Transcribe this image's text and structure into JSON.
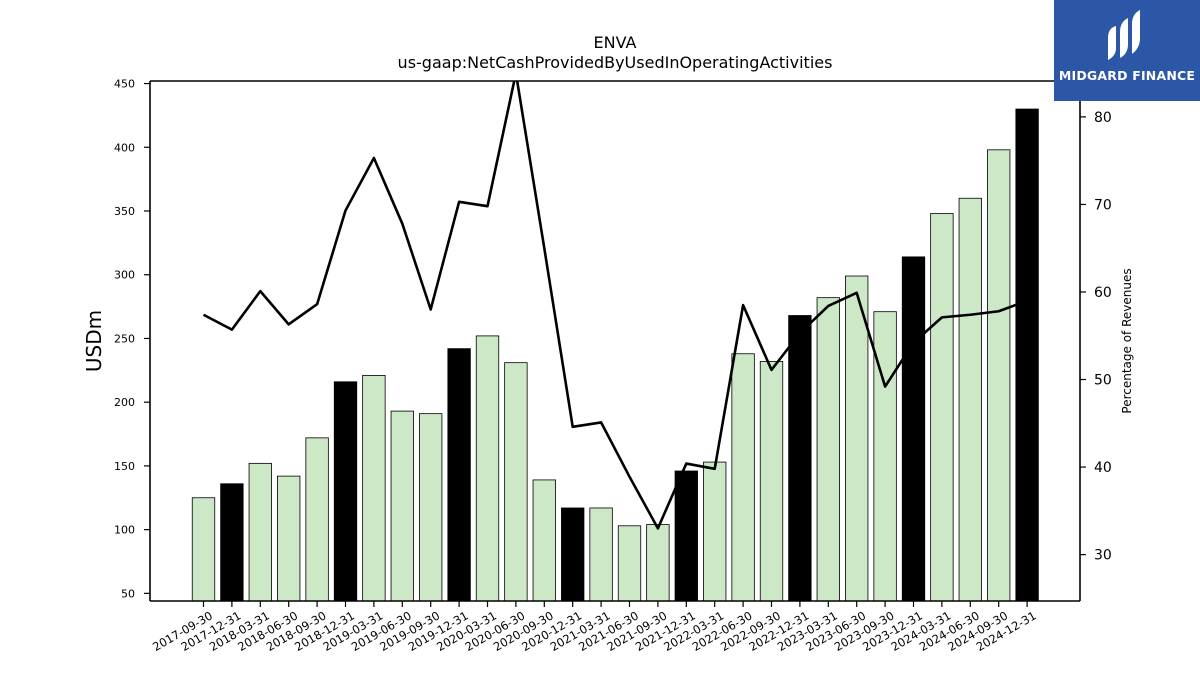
{
  "chart_data": {
    "type": "bar",
    "title": "ENVA",
    "subtitle": "us-gaap:NetCashProvidedByUsedInOperatingActivities",
    "ylabel": "USDm",
    "ylabel_right": "Percentage of Revenues",
    "ylim": [
      44,
      452
    ],
    "ylim_right": [
      24.7,
      84.1
    ],
    "y_ticks": [
      50,
      100,
      150,
      200,
      250,
      300,
      350,
      400,
      450
    ],
    "y_ticks_right": [
      30,
      40,
      50,
      60,
      70,
      80
    ],
    "categories": [
      "2017-09-30",
      "2017-12-31",
      "2018-03-31",
      "2018-06-30",
      "2018-09-30",
      "2018-12-31",
      "2019-03-31",
      "2019-06-30",
      "2019-09-30",
      "2019-12-31",
      "2020-03-31",
      "2020-06-30",
      "2020-09-30",
      "2020-12-31",
      "2021-03-31",
      "2021-06-30",
      "2021-09-30",
      "2021-12-31",
      "2022-03-31",
      "2022-06-30",
      "2022-09-30",
      "2022-12-31",
      "2023-03-31",
      "2023-06-30",
      "2023-09-30",
      "2023-12-31",
      "2024-03-31",
      "2024-06-30",
      "2024-09-30",
      "2024-12-31"
    ],
    "series": [
      {
        "type": "bar",
        "values": [
          125,
          136,
          152,
          142,
          172,
          216,
          221,
          193,
          191,
          242,
          252,
          231,
          139,
          117,
          117,
          103,
          104,
          146,
          153,
          238,
          232,
          268,
          282,
          299,
          271,
          314,
          348,
          360,
          398,
          430
        ],
        "colors": [
          "#cde8c6",
          "#000000",
          "#cde8c6",
          "#cde8c6",
          "#cde8c6",
          "#000000",
          "#cde8c6",
          "#cde8c6",
          "#cde8c6",
          "#000000",
          "#cde8c6",
          "#cde8c6",
          "#cde8c6",
          "#000000",
          "#cde8c6",
          "#cde8c6",
          "#cde8c6",
          "#000000",
          "#cde8c6",
          "#cde8c6",
          "#cde8c6",
          "#000000",
          "#cde8c6",
          "#cde8c6",
          "#cde8c6",
          "#000000",
          "#cde8c6",
          "#cde8c6",
          "#cde8c6",
          "#000000"
        ]
      },
      {
        "type": "line",
        "axis": "right",
        "color": "#000000",
        "values": [
          57.4,
          55.7,
          60.1,
          56.3,
          58.6,
          69.3,
          75.3,
          67.8,
          58.0,
          70.3,
          69.8,
          85.0,
          65.0,
          44.6,
          45.1,
          38.9,
          33.0,
          40.4,
          39.8,
          58.5,
          51.1,
          55.3,
          58.4,
          59.9,
          49.2,
          54.2,
          57.1,
          57.4,
          57.8,
          59.0
        ]
      }
    ],
    "grid": false,
    "legend": "none"
  },
  "logo": {
    "text": "MIDGARD FINANCE",
    "bg_color": "#2c57a6"
  }
}
